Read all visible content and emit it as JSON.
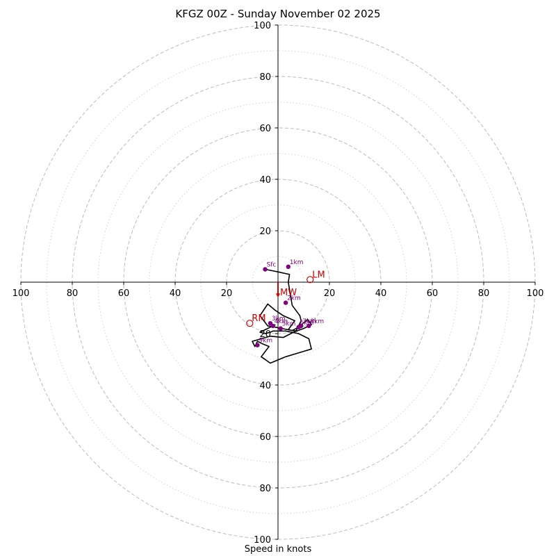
{
  "chart_data": {
    "type": "hodograph",
    "title": "KFGZ 00Z - Sunday November 02 2025",
    "xlabel": "Speed in knots",
    "units": "knots",
    "max_speed": 100,
    "ring_major": [
      20,
      40,
      60,
      80,
      100
    ],
    "ring_minor": [
      10,
      30,
      50,
      70,
      90
    ],
    "x_tick_labels": [
      "100",
      "80",
      "60",
      "40",
      "20",
      "20",
      "40",
      "60",
      "80",
      "100"
    ],
    "y_tick_labels": [
      "100",
      "80",
      "60",
      "40",
      "20",
      "20",
      "40",
      "60",
      "80",
      "100"
    ],
    "trace_uv": [
      [
        -5,
        5
      ],
      [
        0,
        4
      ],
      [
        4.5,
        3
      ],
      [
        4,
        0
      ],
      [
        5.5,
        -9
      ],
      [
        8.5,
        -13
      ],
      [
        9,
        -15
      ],
      [
        7,
        -19
      ],
      [
        4,
        -18.5
      ],
      [
        6.5,
        -15
      ],
      [
        2,
        -13
      ],
      [
        -1,
        -11
      ],
      [
        -4,
        -8.5
      ],
      [
        -5,
        -10
      ],
      [
        -7,
        -13
      ],
      [
        -4,
        -17
      ],
      [
        -1,
        -17.5
      ],
      [
        5.5,
        -18.8
      ],
      [
        8,
        -17.5
      ],
      [
        11.5,
        -14.5
      ],
      [
        13,
        -16.5
      ],
      [
        10,
        -18
      ],
      [
        6,
        -19.5
      ],
      [
        2,
        -21.5
      ],
      [
        -3,
        -21
      ],
      [
        -10,
        -23
      ],
      [
        -9,
        -25
      ],
      [
        -8,
        -23
      ],
      [
        -6,
        -24
      ],
      [
        -3.5,
        -25
      ],
      [
        -6.5,
        -29
      ],
      [
        -3,
        -31.5
      ],
      [
        3,
        -29
      ],
      [
        13,
        -26
      ],
      [
        12,
        -22
      ],
      [
        8,
        -20
      ],
      [
        3,
        -19
      ],
      [
        -2,
        -19
      ],
      [
        -3,
        -19.5
      ],
      [
        -5,
        -20
      ],
      [
        -7,
        -19.5
      ],
      [
        -3,
        -17.5
      ],
      [
        -1,
        -16.5
      ]
    ],
    "height_markers": [
      {
        "label": "Sfc",
        "u": -5,
        "v": 5
      },
      {
        "label": "1km",
        "u": 4,
        "v": 6
      },
      {
        "label": "2km",
        "u": 3,
        "v": -8
      },
      {
        "label": "3km",
        "u": -3,
        "v": -16
      },
      {
        "label": "4km",
        "u": -2,
        "v": -17
      },
      {
        "label": "5km",
        "u": 1,
        "v": -18
      },
      {
        "label": "6km",
        "u": 8,
        "v": -17.5
      },
      {
        "label": "7km",
        "u": 9,
        "v": -17
      },
      {
        "label": "8km",
        "u": 12,
        "v": -17
      },
      {
        "label": "9km",
        "u": -8,
        "v": -24.5
      }
    ],
    "storm_motion": [
      {
        "label": "LM",
        "u": 12.5,
        "v": 1
      },
      {
        "label": "RM",
        "u": -11,
        "v": -16
      },
      {
        "label": "MW",
        "u": 0,
        "v": -6
      }
    ],
    "colors": {
      "trace": "#000000",
      "markers": "#800080",
      "storm_motion": "#cc0000",
      "grid": "#bbbbbb",
      "axes": "#000000"
    }
  }
}
